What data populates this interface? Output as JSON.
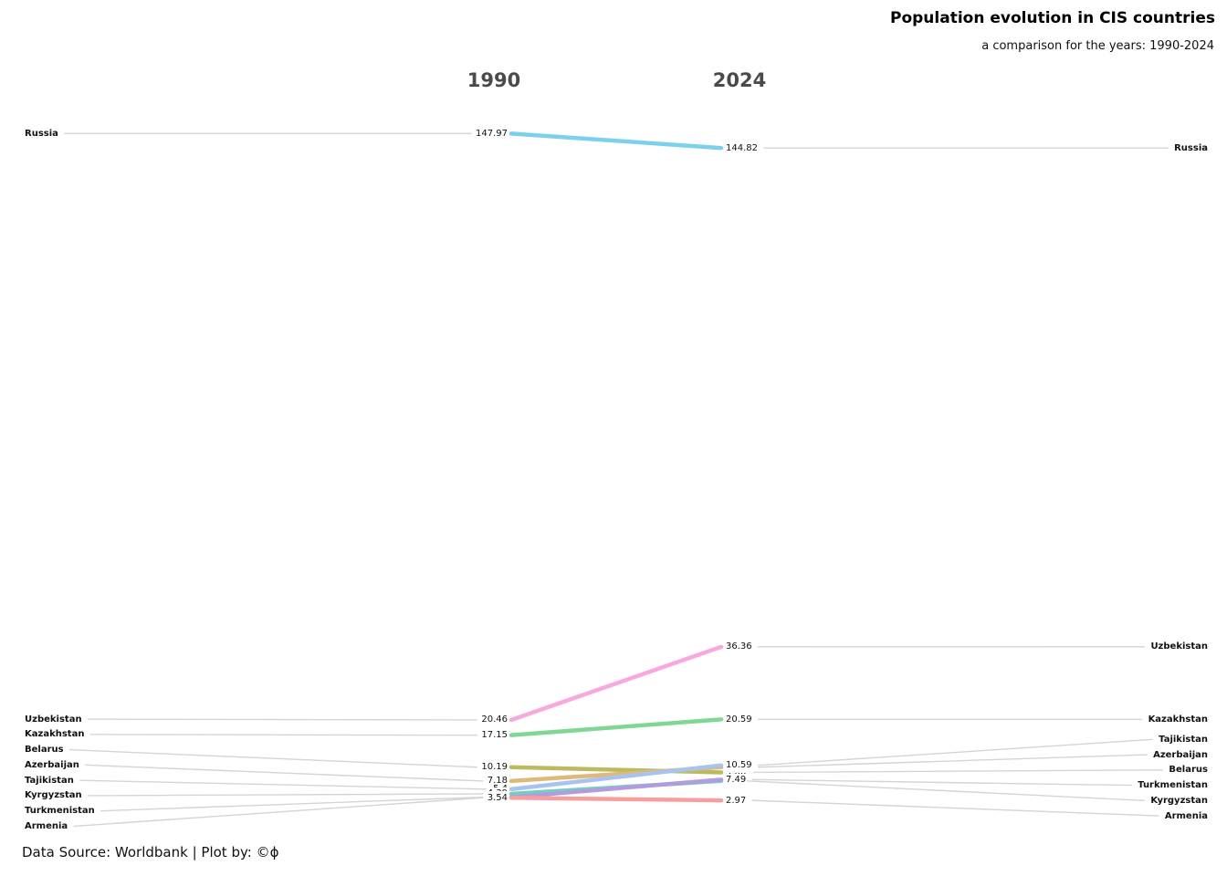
{
  "title": "Population evolution in CIS countries",
  "subtitle": "a comparison for the years: 1990-2024",
  "footer": "Data Source: Worldbank | Plot by: ©ϕ",
  "chart_data": {
    "type": "line",
    "subtype": "slopegraph",
    "columns": [
      "1990",
      "2024"
    ],
    "x": [
      1990,
      2024
    ],
    "ylabel": "Population (millions)",
    "leader_color": "#d4d4d4",
    "header_color": "#4a4a4a",
    "series": [
      {
        "name": "Russia",
        "color": "#7bd0ec",
        "values": [
          147.97,
          144.82
        ]
      },
      {
        "name": "Uzbekistan",
        "color": "#f7a8dc",
        "values": [
          20.46,
          36.36
        ]
      },
      {
        "name": "Kazakhstan",
        "color": "#80d795",
        "values": [
          17.15,
          20.59
        ]
      },
      {
        "name": "Belarus",
        "color": "#bcba5f",
        "values": [
          10.19,
          9.06
        ]
      },
      {
        "name": "Azerbaijan",
        "color": "#ddb97a",
        "values": [
          7.18,
          10.19
        ]
      },
      {
        "name": "Tajikistan",
        "color": "#a8c4ee",
        "values": [
          5.4,
          10.59
        ]
      },
      {
        "name": "Kyrgyzstan",
        "color": "#6fd1bd",
        "values": [
          4.39,
          7.2
        ]
      },
      {
        "name": "Turkmenistan",
        "color": "#b29bde",
        "values": [
          3.66,
          7.49
        ]
      },
      {
        "name": "Armenia",
        "color": "#f5a09e",
        "values": [
          3.54,
          2.97
        ]
      }
    ]
  }
}
